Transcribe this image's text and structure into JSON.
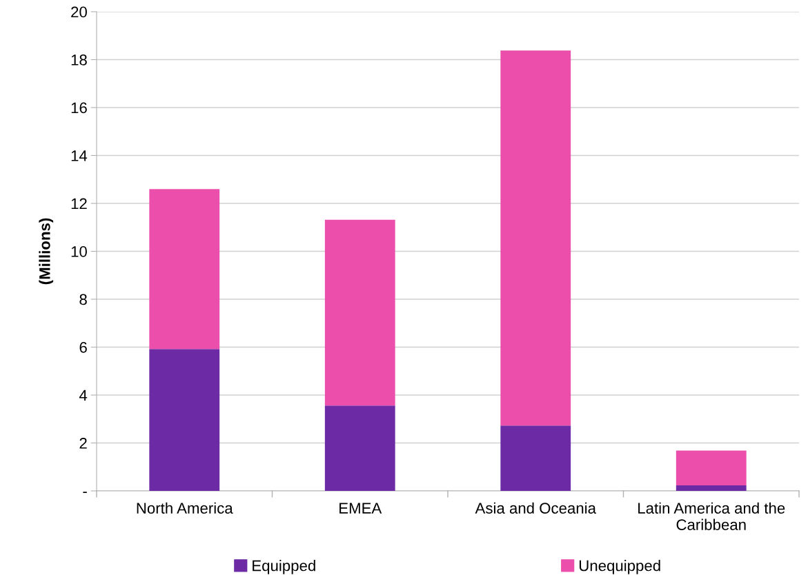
{
  "chart_data": {
    "type": "bar",
    "stacked": true,
    "ylabel": "(Millions)",
    "categories": [
      "North America",
      "EMEA",
      "Asia and Oceania",
      "Latin America and the\nCaribbean"
    ],
    "series": [
      {
        "name": "Equipped",
        "color": "#6d2aa5",
        "values": [
          5.92,
          3.56,
          2.73,
          0.23
        ]
      },
      {
        "name": "Unequipped",
        "color": "#eb4fab",
        "values": [
          6.68,
          7.76,
          15.65,
          1.45
        ]
      }
    ],
    "ylim": [
      0,
      20
    ],
    "yticks": [
      {
        "value": 0,
        "label": "-"
      },
      2,
      4,
      6,
      8,
      10,
      12,
      14,
      16,
      18,
      20
    ],
    "grid": "y",
    "legend": "bottom"
  }
}
